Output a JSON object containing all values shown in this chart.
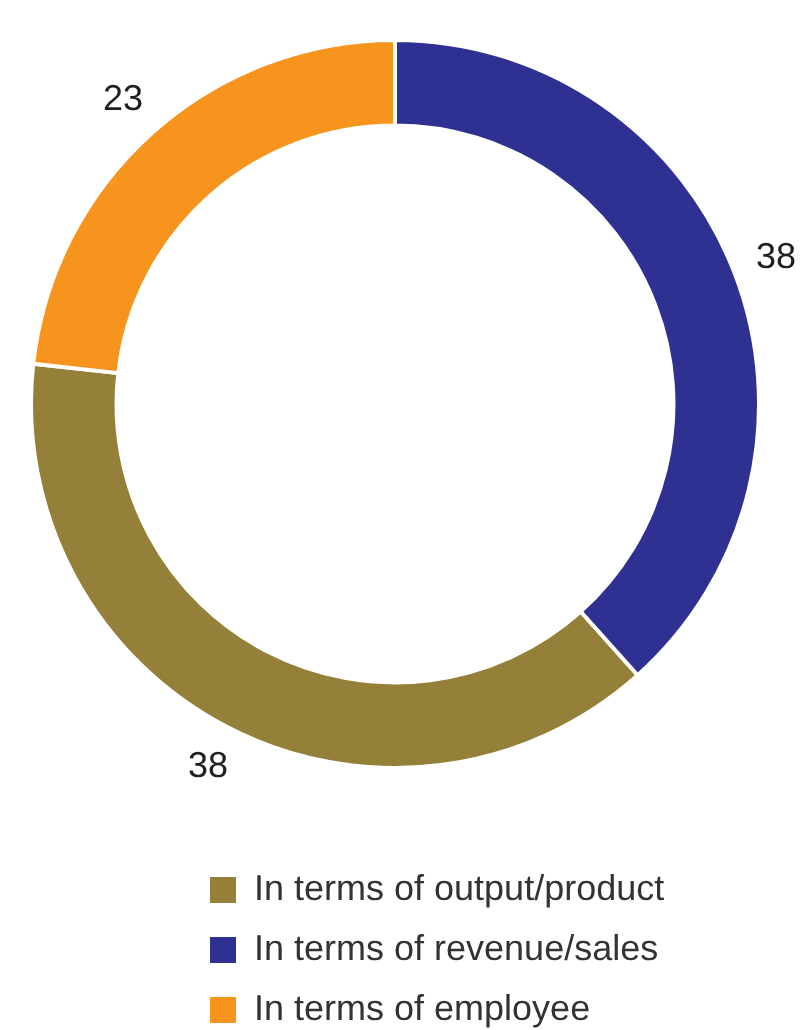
{
  "chart_data": {
    "type": "donut",
    "categories": [
      "In terms of output/product",
      "In terms of revenue/sales",
      "In terms of employee"
    ],
    "values": [
      38,
      38,
      23
    ],
    "colors": [
      "#948039",
      "#2e3192",
      "#f7941e"
    ],
    "data_labels": true,
    "legend": "bottom"
  }
}
